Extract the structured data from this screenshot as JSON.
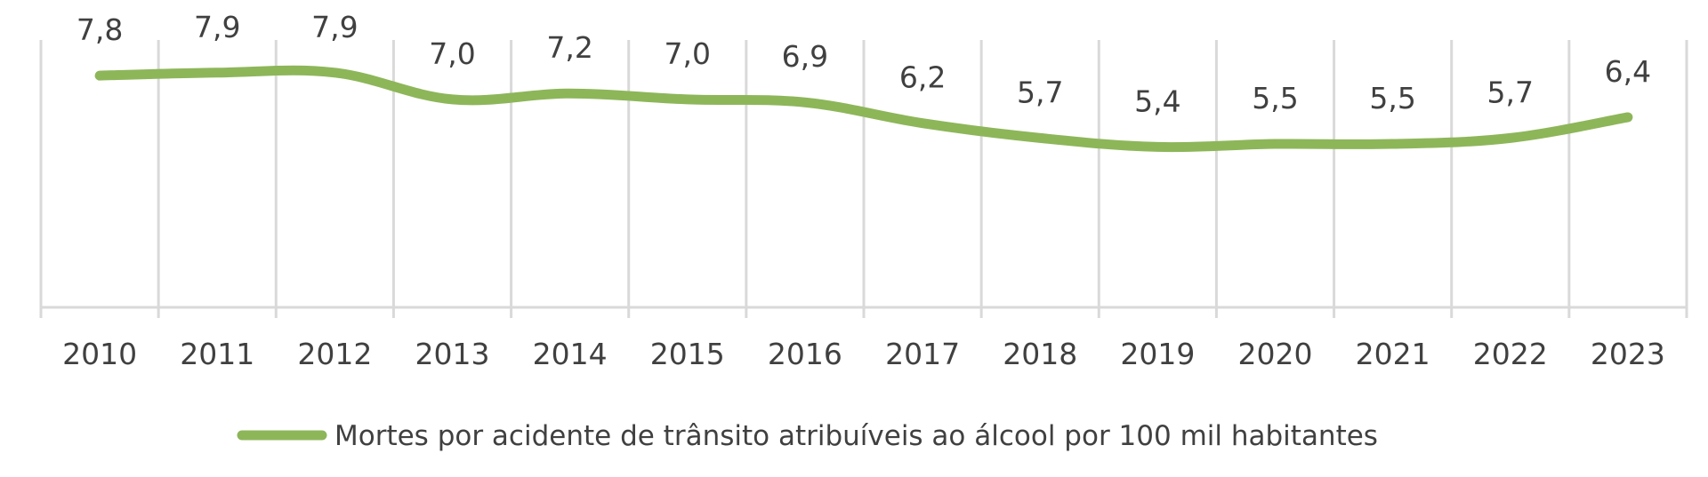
{
  "chart_data": {
    "type": "line",
    "x": [
      "2010",
      "2011",
      "2012",
      "2013",
      "2014",
      "2015",
      "2016",
      "2017",
      "2018",
      "2019",
      "2020",
      "2021",
      "2022",
      "2023"
    ],
    "series": [
      {
        "name": "Mortes por acidente de trânsito atribuíveis ao álcool por 100 mil habitantes",
        "values": [
          7.8,
          7.9,
          7.9,
          7.0,
          7.2,
          7.0,
          6.9,
          6.2,
          5.7,
          5.4,
          5.5,
          5.5,
          5.7,
          6.4
        ],
        "labels": [
          "7,8",
          "7,9",
          "7,9",
          "7,0",
          "7,2",
          "7,0",
          "6,9",
          "6,2",
          "5,7",
          "5,4",
          "5,5",
          "5,5",
          "5,7",
          "6,4"
        ],
        "color": "#8db659"
      }
    ],
    "title": "",
    "xlabel": "",
    "ylabel": "",
    "ylim": [
      0,
      9
    ],
    "grid": "vertical",
    "legend_position": "bottom"
  }
}
